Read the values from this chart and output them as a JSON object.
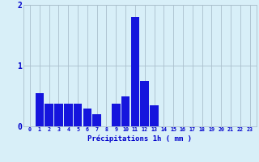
{
  "hours": [
    0,
    1,
    2,
    3,
    4,
    5,
    6,
    7,
    8,
    9,
    10,
    11,
    12,
    13,
    14,
    15,
    16,
    17,
    18,
    19,
    20,
    21,
    22,
    23
  ],
  "values": [
    0,
    0.55,
    0.38,
    0.38,
    0.38,
    0.38,
    0.3,
    0.2,
    0,
    0.38,
    0.5,
    1.8,
    0.75,
    0.35,
    0,
    0,
    0,
    0,
    0,
    0,
    0,
    0,
    0,
    0
  ],
  "bar_color": "#1515dd",
  "background_color": "#d8eff8",
  "grid_color": "#aabfcc",
  "text_color": "#0000cc",
  "xlabel": "Précipitations 1h ( mm )",
  "ylim": [
    0,
    2
  ],
  "yticks": [
    0,
    1,
    2
  ],
  "figsize": [
    3.2,
    2.0
  ],
  "dpi": 100
}
